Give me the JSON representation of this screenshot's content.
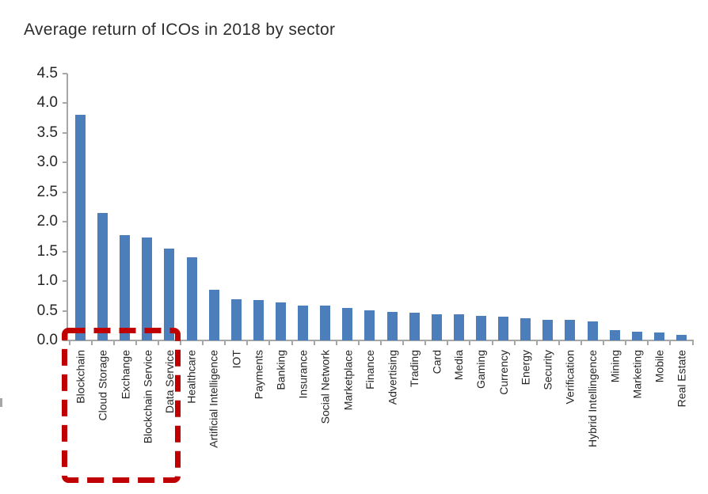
{
  "title": "Average return of ICOs in 2018 by sector",
  "colors": {
    "bar": "#4d7ebc",
    "axis": "#a6a6a6",
    "highlight": "#c00000",
    "text": "#262626"
  },
  "chart_data": {
    "type": "bar",
    "title": "Average return of ICOs in 2018 by sector",
    "xlabel": "",
    "ylabel": "",
    "ylim": [
      0,
      4.5
    ],
    "grid": false,
    "legend": null,
    "ytick_labels": [
      "0.0",
      "0.5",
      "1.0",
      "1.5",
      "2.0",
      "2.5",
      "3.0",
      "3.5",
      "4.0",
      "4.5"
    ],
    "categories": [
      "Blockchain",
      "Cloud Storage",
      "Exchange",
      "Blockchain Service",
      "Data Service",
      "Healthcare",
      "Artificial Intelligence",
      "IOT",
      "Payments",
      "Banking",
      "Insurance",
      "Social Network",
      "Marketplace",
      "Finance",
      "Advertising",
      "Trading",
      "Card",
      "Media",
      "Gaming",
      "Currency",
      "Energy",
      "Security",
      "Verification",
      "Hybrid Intellingence",
      "Mining",
      "Marketing",
      "Mobile",
      "Real Estate"
    ],
    "values": [
      3.8,
      2.15,
      1.77,
      1.73,
      1.55,
      1.4,
      0.86,
      0.7,
      0.68,
      0.64,
      0.59,
      0.59,
      0.55,
      0.51,
      0.48,
      0.47,
      0.44,
      0.44,
      0.41,
      0.4,
      0.38,
      0.35,
      0.35,
      0.32,
      0.17,
      0.15,
      0.13,
      0.1
    ],
    "highlight_box": {
      "categories": [
        "Blockchain",
        "Cloud Storage",
        "Exchange",
        "Blockchain Service",
        "Data Service"
      ],
      "style": "thick red dashed rectangle around first five category labels"
    }
  }
}
